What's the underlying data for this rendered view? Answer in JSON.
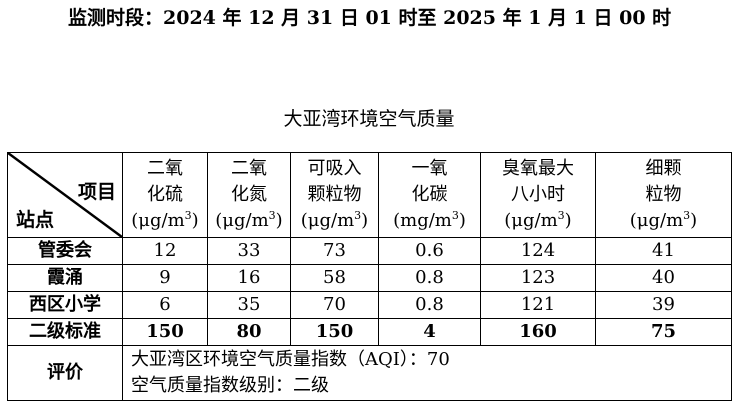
{
  "period_line": "监测时段：2024 年 12 月 31 日 01 时至 2025 年 1 月 1 日 00 时",
  "table_title": "大亚湾环境空气质量",
  "header": {
    "item_label": "项目",
    "station_label": "站点",
    "columns": [
      {
        "name_line1": "二氧",
        "name_line2": "化硫",
        "unit": "(μg/m",
        "unit_sup": "3",
        "unit_close": ")"
      },
      {
        "name_line1": "二氧",
        "name_line2": "化氮",
        "unit": "(μg/m",
        "unit_sup": "3",
        "unit_close": ")"
      },
      {
        "name_line1": "可吸入",
        "name_line2": "颗粒物",
        "unit": "(μg/m",
        "unit_sup": "3",
        "unit_close": ")"
      },
      {
        "name_line1": "一氧",
        "name_line2": "化碳",
        "unit": "(mg/m",
        "unit_sup": "3",
        "unit_close": ")"
      },
      {
        "name_line1": "臭氧最大",
        "name_line2": "八小时",
        "unit": "(μg/m",
        "unit_sup": "3",
        "unit_close": ")"
      },
      {
        "name_line1": "细颗",
        "name_line2": "粒物",
        "unit": "(μg/m",
        "unit_sup": "3",
        "unit_close": ")"
      }
    ]
  },
  "rows": [
    {
      "station": "管委会",
      "values": [
        "12",
        "33",
        "73",
        "0.6",
        "124",
        "41"
      ]
    },
    {
      "station": "霞涌",
      "values": [
        "9",
        "16",
        "58",
        "0.8",
        "123",
        "40"
      ]
    },
    {
      "station": "西区小学",
      "values": [
        "6",
        "35",
        "70",
        "0.8",
        "121",
        "39"
      ]
    }
  ],
  "standard": {
    "label": "二级标准",
    "values": [
      "150",
      "80",
      "150",
      "4",
      "160",
      "75"
    ]
  },
  "evaluation": {
    "label": "评价",
    "line1": "大亚湾区环境空气质量指数（AQI）：70",
    "line2": "空气质量指数级别：二级"
  }
}
